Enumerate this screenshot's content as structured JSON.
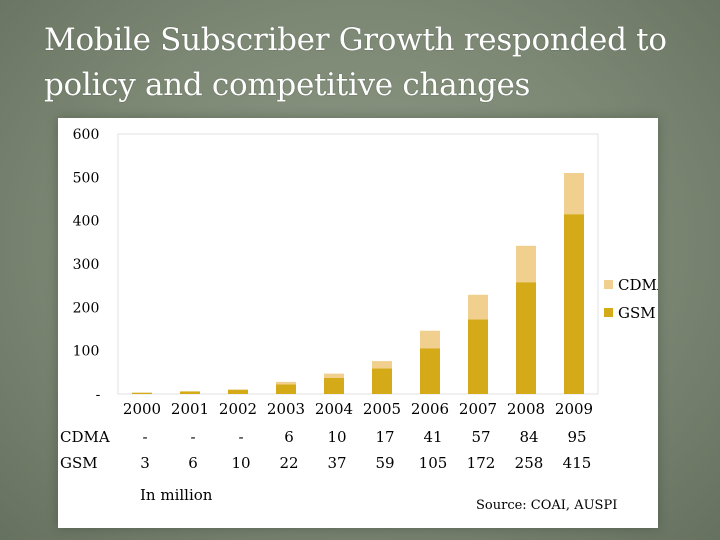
{
  "slide": {
    "title": "Mobile Subscriber Growth responded to policy and competitive changes",
    "unit_note": "In million",
    "source_note": "Source: COAI, AUSPI"
  },
  "colors": {
    "background": "#7c8874",
    "gsm": "#d4aa18",
    "cdma": "#f1cf8e",
    "grid": "#e2e2e2",
    "text": "#000000"
  },
  "chart_data": {
    "type": "bar",
    "stacked": true,
    "categories": [
      "2000",
      "2001",
      "2002",
      "2003",
      "2004",
      "2005",
      "2006",
      "2007",
      "2008",
      "2009"
    ],
    "series": [
      {
        "name": "GSM",
        "values": [
          3,
          6,
          10,
          22,
          37,
          59,
          105,
          172,
          258,
          415
        ],
        "color": "#d4aa18"
      },
      {
        "name": "CDMA",
        "values": [
          0,
          0,
          0,
          6,
          10,
          17,
          41,
          57,
          84,
          95
        ],
        "color": "#f1cf8e"
      }
    ],
    "ytick_labels": [
      "-",
      "100",
      "200",
      "300",
      "400",
      "500",
      "600"
    ],
    "ylim": [
      0,
      600
    ],
    "ytick_step": 100,
    "grid": false,
    "legend": {
      "position": "right",
      "order": [
        "CDMA",
        "GSM"
      ]
    },
    "table": {
      "rows": [
        {
          "label": "CDMA",
          "cells": [
            "-",
            "-",
            "-",
            "6",
            "10",
            "17",
            "41",
            "57",
            "84",
            "95"
          ]
        },
        {
          "label": "GSM",
          "cells": [
            "3",
            "6",
            "10",
            "22",
            "37",
            "59",
            "105",
            "172",
            "258",
            "415"
          ]
        }
      ]
    }
  }
}
